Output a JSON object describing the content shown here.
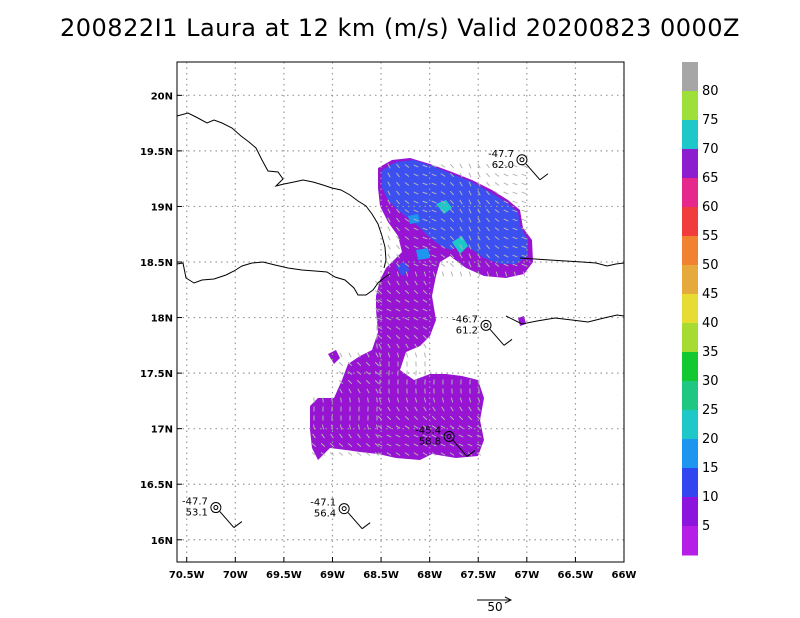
{
  "title": "200822I1 Laura at 12 km (m/s) Valid 20200823 0000Z",
  "map": {
    "lon_range": [
      -70.6,
      -66.0
    ],
    "lat_range": [
      15.8,
      20.3
    ],
    "lon_ticks": [
      {
        "value": -70.5,
        "label": "70.5W"
      },
      {
        "value": -70.0,
        "label": "70W"
      },
      {
        "value": -69.5,
        "label": "69.5W"
      },
      {
        "value": -69.0,
        "label": "69W"
      },
      {
        "value": -68.5,
        "label": "68.5W"
      },
      {
        "value": -68.0,
        "label": "68W"
      },
      {
        "value": -67.5,
        "label": "67.5W"
      },
      {
        "value": -67.0,
        "label": "67W"
      },
      {
        "value": -66.5,
        "label": "66.5W"
      },
      {
        "value": -66.0,
        "label": "66W"
      }
    ],
    "lat_ticks": [
      {
        "value": 20.0,
        "label": "20N"
      },
      {
        "value": 19.5,
        "label": "19.5N"
      },
      {
        "value": 19.0,
        "label": "19N"
      },
      {
        "value": 18.5,
        "label": "18.5N"
      },
      {
        "value": 18.0,
        "label": "18N"
      },
      {
        "value": 17.5,
        "label": "17.5N"
      },
      {
        "value": 17.0,
        "label": "17N"
      },
      {
        "value": 16.5,
        "label": "16.5N"
      },
      {
        "value": 16.0,
        "label": "16N"
      }
    ],
    "gridlines": true,
    "stations": [
      {
        "lon": -67.05,
        "lat": 19.42,
        "temp": "-47.7",
        "height": "62.0"
      },
      {
        "lon": -67.42,
        "lat": 17.93,
        "temp": "-46.7",
        "height": "61.2"
      },
      {
        "lon": -67.8,
        "lat": 16.93,
        "temp": "-45.4",
        "height": "58.8"
      },
      {
        "lon": -70.2,
        "lat": 16.29,
        "temp": "-47.7",
        "height": "53.1"
      },
      {
        "lon": -68.88,
        "lat": 16.28,
        "temp": "-47.1",
        "height": "56.4"
      }
    ]
  },
  "colorbar": {
    "labels": [
      "80",
      "75",
      "70",
      "65",
      "60",
      "55",
      "50",
      "45",
      "40",
      "35",
      "30",
      "25",
      "20",
      "15",
      "10",
      "5"
    ],
    "colors": [
      "#a6a6a6",
      "#9ee03a",
      "#1ec8c8",
      "#8c1ed0",
      "#e6288c",
      "#f03c3c",
      "#f08232",
      "#e6aa3c",
      "#e6dc32",
      "#a6dc32",
      "#14c832",
      "#1ec882",
      "#1ec8c8",
      "#1e96f0",
      "#3246f0",
      "#8c14dc",
      "#b41ee6"
    ]
  },
  "vector_scale": {
    "label": "50"
  },
  "legend_colors": {
    "land": "#000000",
    "grid": "#9a9a9a",
    "dominant_wind": "#9614d2",
    "strong_wind": "#3c50f0",
    "arrows": "#b4b4b4"
  }
}
